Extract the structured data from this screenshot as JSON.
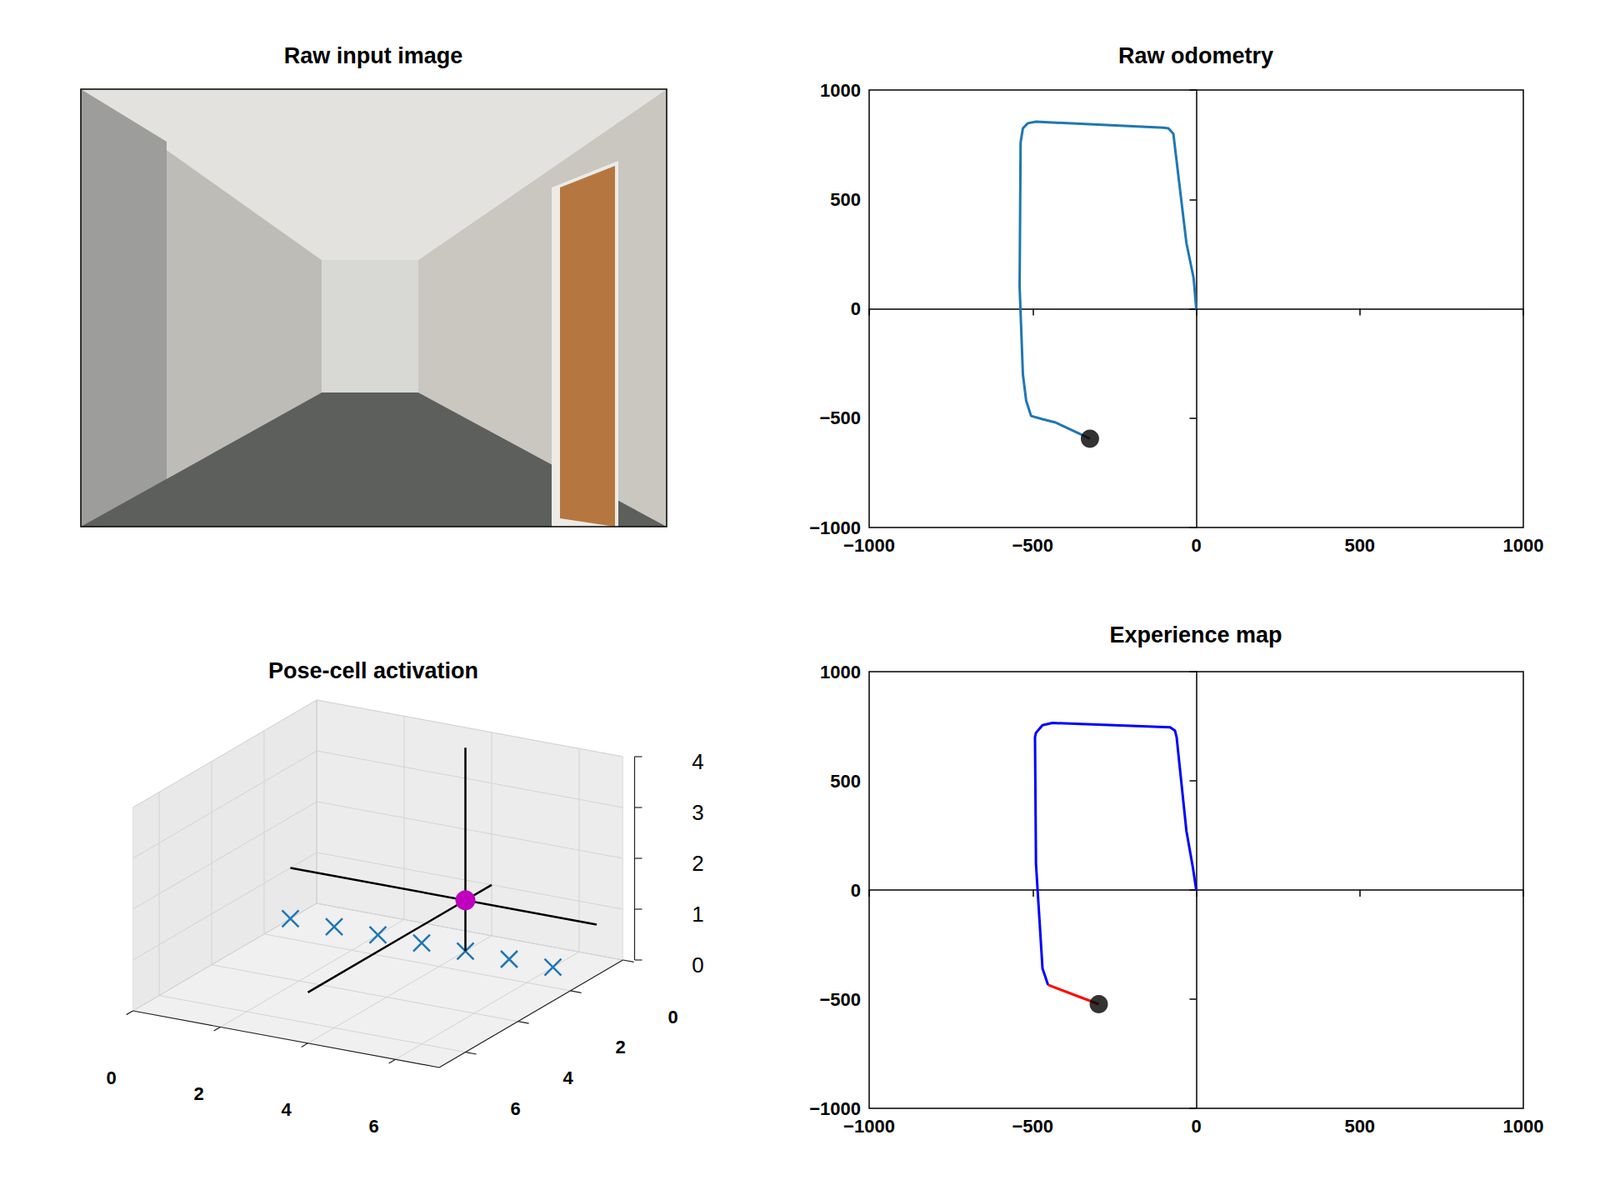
{
  "chart_data": [
    {
      "type": "image",
      "title": "Raw input image"
    },
    {
      "type": "line",
      "title": "Raw odometry",
      "xlim": [
        -1000,
        1000
      ],
      "ylim": [
        -1000,
        1000
      ],
      "xticks": [
        {
          "value": -1000,
          "label": "−1000"
        },
        {
          "value": -500,
          "label": "−500"
        },
        0,
        500,
        1000
      ],
      "yticks": [
        {
          "value": -1000,
          "label": "−1000"
        },
        {
          "value": -500,
          "label": "−500"
        },
        0,
        500,
        1000
      ],
      "grid": false,
      "series": [
        {
          "type": "line",
          "color": "#1f77b4",
          "x": [
            0,
            -8,
            -30,
            -70,
            -85,
            -100,
            -490,
            -515,
            -530,
            -537,
            -540,
            -530,
            -520,
            -505,
            -470,
            -430,
            -325
          ],
          "values": [
            0,
            140,
            300,
            800,
            825,
            828,
            855,
            848,
            825,
            760,
            100,
            -300,
            -420,
            -490,
            -505,
            -520,
            -594
          ]
        },
        {
          "type": "scatter",
          "color": "#000000",
          "marker": "circle",
          "x": [
            -325
          ],
          "values": [
            -594
          ]
        }
      ]
    },
    {
      "type": "scatter3d",
      "title": "Pose-cell activation",
      "xlim": [
        0,
        7
      ],
      "ylim": [
        0,
        7
      ],
      "zlim": [
        0,
        4
      ],
      "xticks": [
        0,
        2,
        4,
        6
      ],
      "yticks": [
        0,
        2,
        4,
        6
      ],
      "zticks": [
        0,
        1,
        2,
        3,
        4
      ],
      "grid": true,
      "series": [
        {
          "type": "scatter",
          "marker": "x",
          "color": "#1f77b4",
          "x": [
            0,
            1,
            2,
            3,
            4,
            5,
            6
          ],
          "y": [
            1,
            1,
            1,
            1,
            1,
            1,
            1
          ],
          "z": [
            0,
            0,
            0,
            0,
            0,
            0,
            0
          ]
        },
        {
          "type": "crosshair",
          "color": "#000000",
          "x": [
            4
          ],
          "y": [
            1
          ],
          "z": [
            1
          ]
        },
        {
          "type": "scatter",
          "marker": "circle",
          "color": "#bf00bf",
          "x": [
            4
          ],
          "y": [
            1
          ],
          "z": [
            1
          ]
        }
      ]
    },
    {
      "type": "line",
      "title": "Experience map",
      "xlim": [
        -1000,
        1000
      ],
      "ylim": [
        -1000,
        1000
      ],
      "xticks": [
        {
          "value": -1000,
          "label": "−1000"
        },
        {
          "value": -500,
          "label": "−500"
        },
        0,
        500,
        1000
      ],
      "yticks": [
        {
          "value": -1000,
          "label": "−1000"
        },
        {
          "value": -500,
          "label": "−500"
        },
        0,
        500,
        1000
      ],
      "grid": false,
      "series": [
        {
          "type": "line",
          "color": "#0000ff",
          "x": [
            0,
            -10,
            -30,
            -60,
            -65,
            -80,
            -440,
            -470,
            -490,
            -493,
            -490,
            -470,
            -453
          ],
          "values": [
            0,
            100,
            270,
            700,
            730,
            745,
            765,
            755,
            720,
            700,
            120,
            -360,
            -435
          ]
        },
        {
          "type": "line",
          "color": "#ff0000",
          "x": [
            -453,
            -298
          ],
          "values": [
            -435,
            -523
          ]
        },
        {
          "type": "scatter",
          "color": "#000000",
          "marker": "circle",
          "x": [
            -298
          ],
          "values": [
            -523
          ]
        }
      ]
    }
  ]
}
